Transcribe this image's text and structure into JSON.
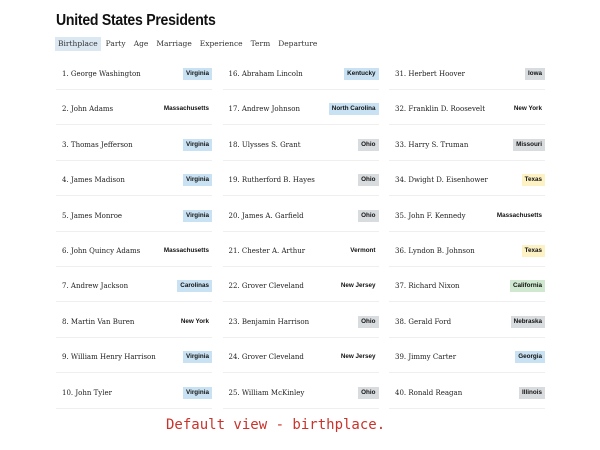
{
  "app": {
    "title": "United States Presidents"
  },
  "tabs": [
    {
      "label": "Birthplace",
      "active": true
    },
    {
      "label": "Party",
      "active": false
    },
    {
      "label": "Age",
      "active": false
    },
    {
      "label": "Marriage",
      "active": false
    },
    {
      "label": "Experience",
      "active": false
    },
    {
      "label": "Term",
      "active": false
    },
    {
      "label": "Departure",
      "active": false
    }
  ],
  "state_colors": {
    "Virginia": "#c9e2f3",
    "Ohio": "#d9dcdf",
    "Massachusetts": "#ffffff",
    "Kentucky": "#c9e2f3",
    "North Carolina": "#c9e2f3",
    "Vermont": "#ffffff",
    "New Jersey": "#ffffff",
    "New York": "#ffffff",
    "Carolinas": "#c9e2f3",
    "Iowa": "#d9dcdf",
    "Missouri": "#d9dcdf",
    "Texas": "#fdf2c4",
    "California": "#cfe8cf",
    "Nebraska": "#d9dcdf",
    "Georgia": "#c9e2f3",
    "Illinois": "#d9dcdf"
  },
  "presidents": [
    {
      "name": "1. George Washington",
      "state": "Virginia"
    },
    {
      "name": "16. Abraham Lincoln",
      "state": "Kentucky"
    },
    {
      "name": "31. Herbert Hoover",
      "state": "Iowa"
    },
    {
      "name": "2. John Adams",
      "state": "Massachusetts"
    },
    {
      "name": "17. Andrew Johnson",
      "state": "North Carolina"
    },
    {
      "name": "32. Franklin D. Roosevelt",
      "state": "New York"
    },
    {
      "name": "3. Thomas Jefferson",
      "state": "Virginia"
    },
    {
      "name": "18. Ulysses S. Grant",
      "state": "Ohio"
    },
    {
      "name": "33. Harry S. Truman",
      "state": "Missouri"
    },
    {
      "name": "4. James Madison",
      "state": "Virginia"
    },
    {
      "name": "19. Rutherford B. Hayes",
      "state": "Ohio"
    },
    {
      "name": "34. Dwight D. Eisenhower",
      "state": "Texas"
    },
    {
      "name": "5. James Monroe",
      "state": "Virginia"
    },
    {
      "name": "20. James A. Garfield",
      "state": "Ohio"
    },
    {
      "name": "35. John F. Kennedy",
      "state": "Massachusetts"
    },
    {
      "name": "6. John Quincy Adams",
      "state": "Massachusetts"
    },
    {
      "name": "21. Chester A. Arthur",
      "state": "Vermont"
    },
    {
      "name": "36. Lyndon B. Johnson",
      "state": "Texas"
    },
    {
      "name": "7. Andrew Jackson",
      "state": "Carolinas"
    },
    {
      "name": "22. Grover Cleveland",
      "state": "New Jersey"
    },
    {
      "name": "37. Richard Nixon",
      "state": "California"
    },
    {
      "name": "8. Martin Van Buren",
      "state": "New York"
    },
    {
      "name": "23. Benjamin Harrison",
      "state": "Ohio"
    },
    {
      "name": "38. Gerald Ford",
      "state": "Nebraska"
    },
    {
      "name": "9. William Henry Harrison",
      "state": "Virginia"
    },
    {
      "name": "24. Grover Cleveland",
      "state": "New Jersey"
    },
    {
      "name": "39. Jimmy Carter",
      "state": "Georgia"
    },
    {
      "name": "10. John Tyler",
      "state": "Virginia"
    },
    {
      "name": "25. William McKinley",
      "state": "Ohio"
    },
    {
      "name": "40. Ronald Reagan",
      "state": "Illinois"
    }
  ],
  "caption": "Default view - birthplace."
}
